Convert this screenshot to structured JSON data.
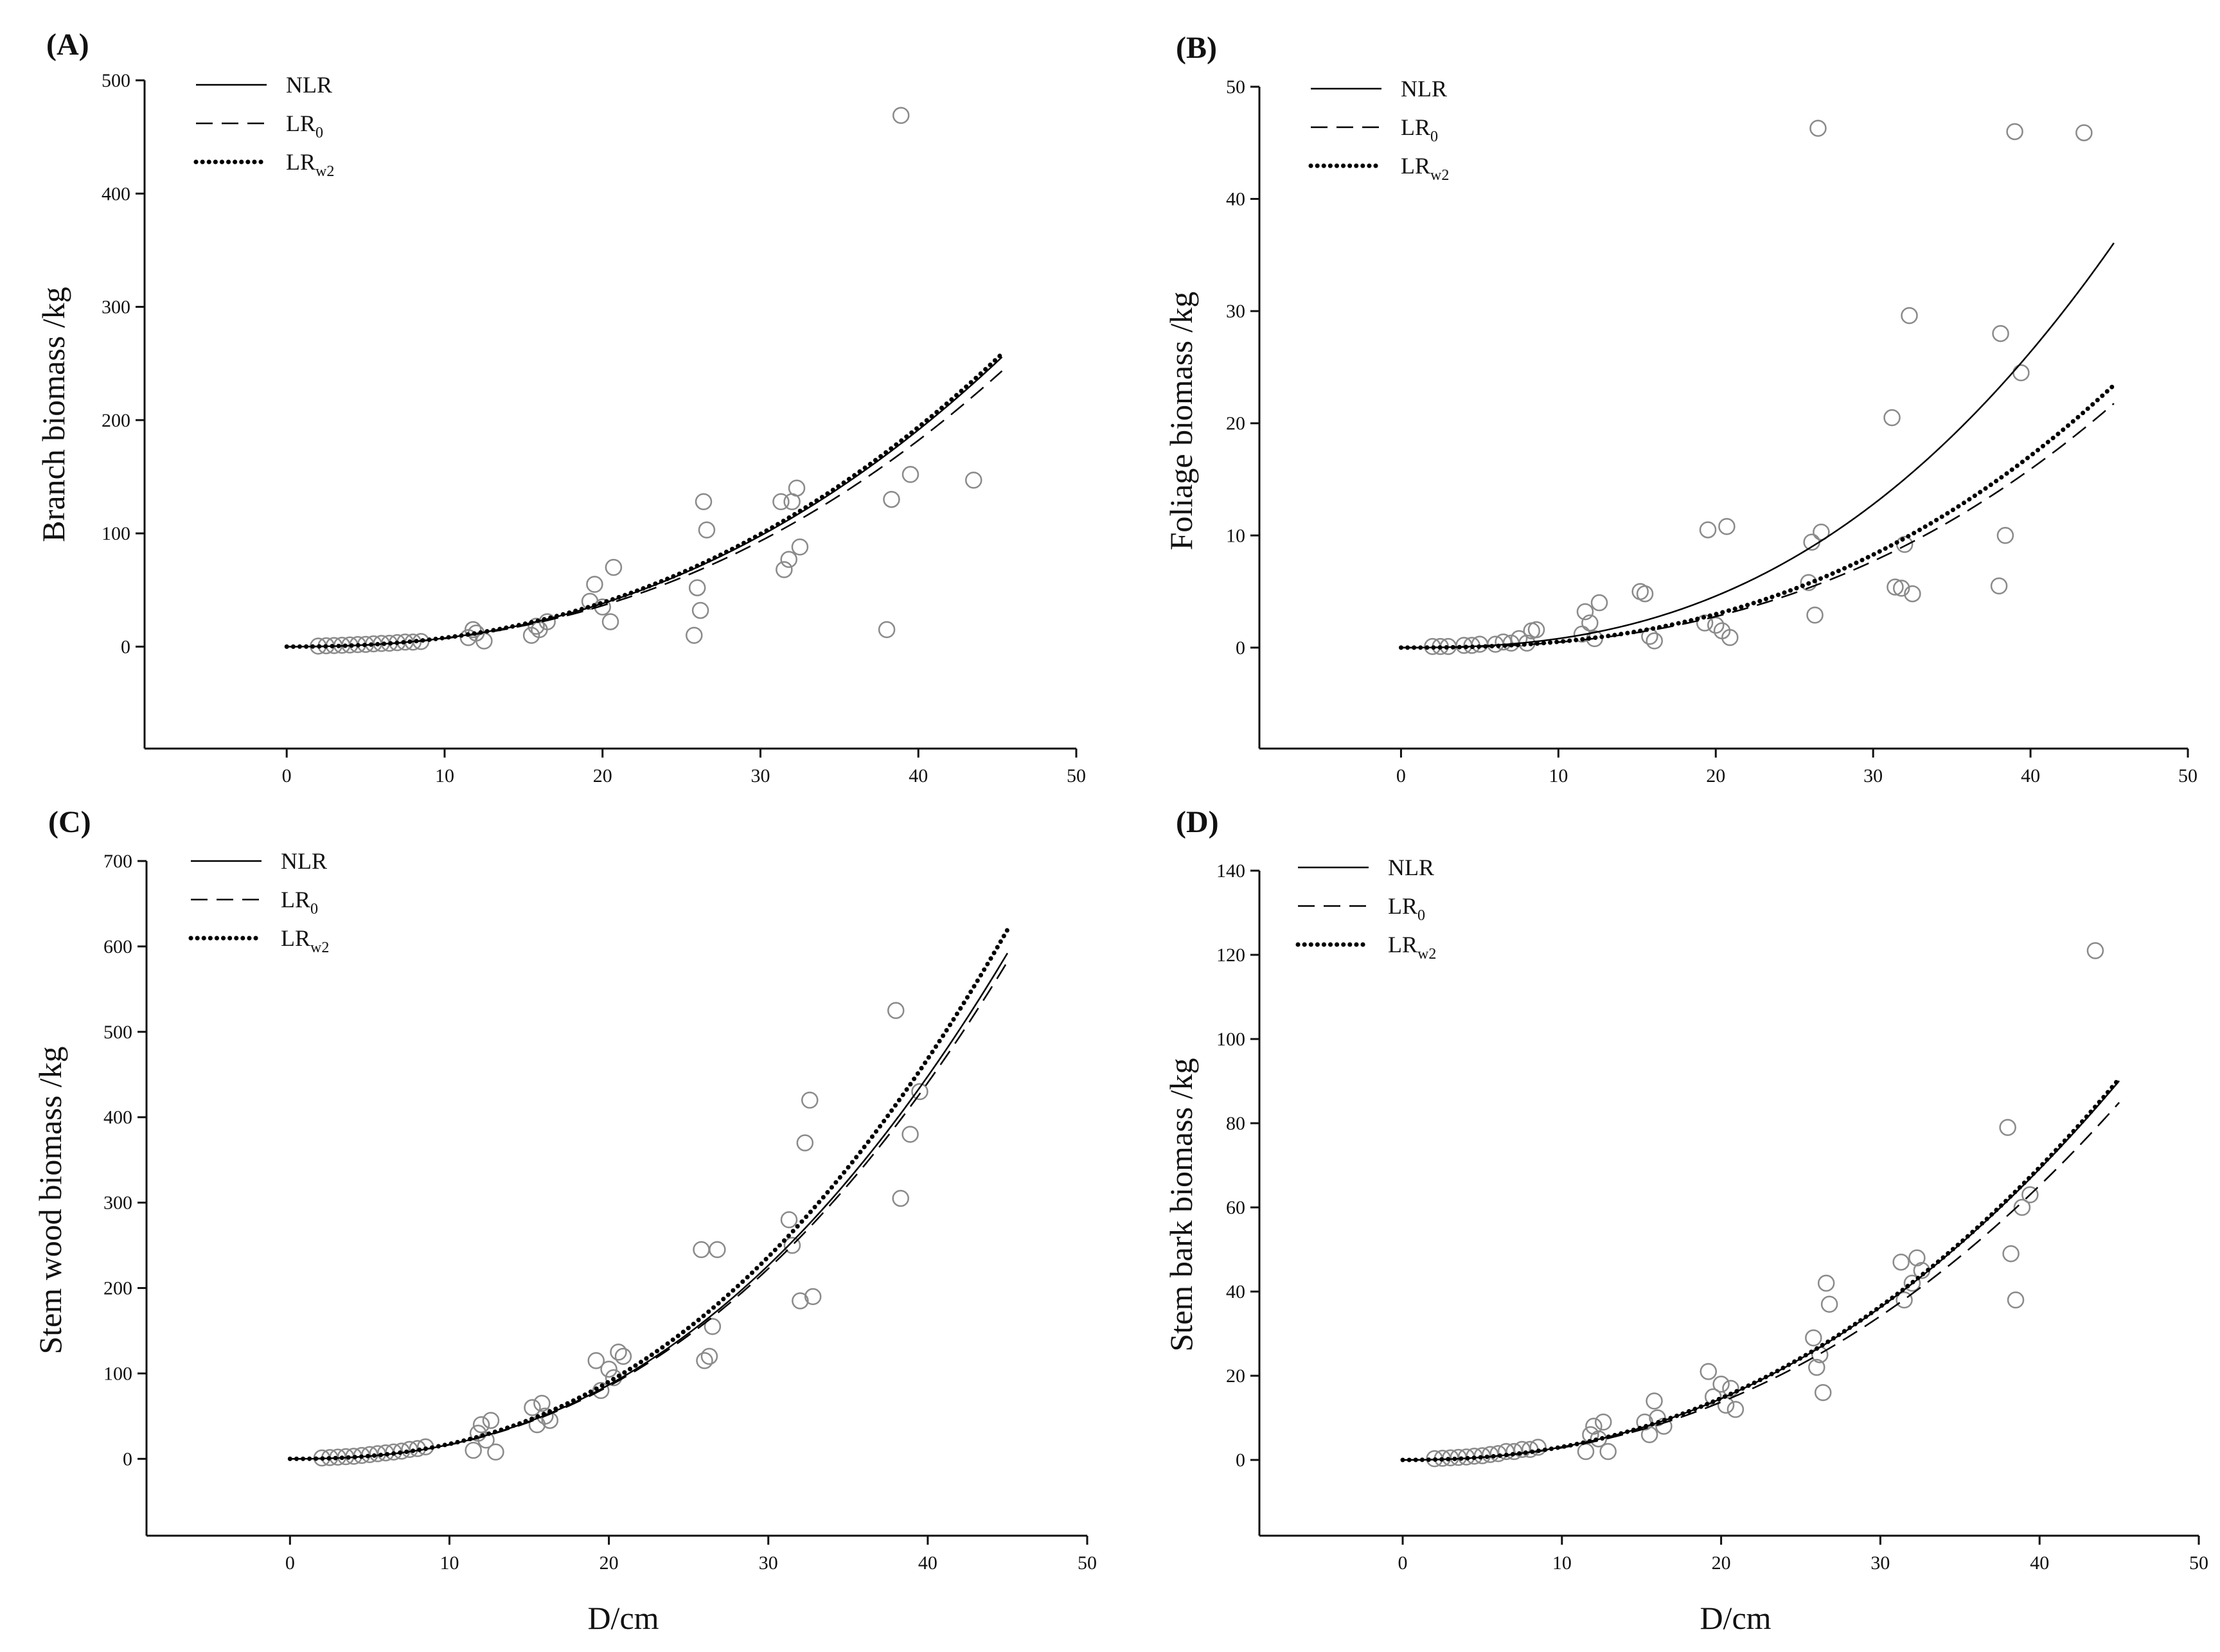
{
  "chart_data": [
    {
      "type": "scatter",
      "panel_label": "(A)",
      "ylabel": "Branch biomass /kg",
      "xlabel": "",
      "xlim": [
        -9,
        50
      ],
      "ylim": [
        -90,
        500
      ],
      "xticks": [
        0,
        10,
        20,
        30,
        40,
        50
      ],
      "yticks": [
        0,
        100,
        200,
        300,
        400,
        500
      ],
      "legend": [
        {
          "style": "solid",
          "label": "NLR",
          "sub": ""
        },
        {
          "style": "dashed",
          "label": "LR",
          "sub": "0"
        },
        {
          "style": "dotted",
          "label": "LR",
          "sub": "w2"
        }
      ],
      "series": [
        {
          "name": "NLR",
          "style": "solid",
          "a": 0.0354,
          "b": 2.33
        },
        {
          "name": "LR0",
          "style": "dashed",
          "a": 0.0337,
          "b": 2.33
        },
        {
          "name": "LRw2",
          "style": "dotted",
          "a": 0.0372,
          "b": 2.32
        }
      ],
      "points": [
        [
          2,
          0.5
        ],
        [
          2.5,
          0.8
        ],
        [
          3,
          1
        ],
        [
          3.5,
          1.2
        ],
        [
          4,
          1.5
        ],
        [
          4.5,
          1.8
        ],
        [
          5,
          2
        ],
        [
          5.5,
          2.5
        ],
        [
          6,
          2.8
        ],
        [
          6.5,
          3
        ],
        [
          7,
          3.5
        ],
        [
          7.5,
          4
        ],
        [
          8,
          4
        ],
        [
          8.5,
          4.5
        ],
        [
          11.5,
          8
        ],
        [
          11.8,
          15
        ],
        [
          12,
          12
        ],
        [
          12.5,
          5
        ],
        [
          15.5,
          10
        ],
        [
          15.8,
          18
        ],
        [
          16,
          15
        ],
        [
          16.5,
          22
        ],
        [
          19.2,
          40
        ],
        [
          19.5,
          55
        ],
        [
          20,
          35
        ],
        [
          20.5,
          22
        ],
        [
          20.7,
          70
        ],
        [
          25.8,
          10
        ],
        [
          26,
          52
        ],
        [
          26.2,
          32
        ],
        [
          26.4,
          128
        ],
        [
          26.6,
          103
        ],
        [
          31.3,
          128
        ],
        [
          31.5,
          68
        ],
        [
          31.8,
          77
        ],
        [
          32,
          128
        ],
        [
          32.3,
          140
        ],
        [
          32.5,
          88
        ],
        [
          38,
          15
        ],
        [
          38.3,
          130
        ],
        [
          38.9,
          469
        ],
        [
          39.5,
          152
        ],
        [
          43.5,
          147
        ]
      ],
      "curve_xmax": 45.3
    },
    {
      "type": "scatter",
      "panel_label": "(B)",
      "ylabel": "Foliage biomass /kg",
      "xlabel": "",
      "xlim": [
        -9,
        50
      ],
      "ylim": [
        -9,
        50
      ],
      "xticks": [
        0,
        10,
        20,
        30,
        40,
        50
      ],
      "yticks": [
        0,
        10,
        20,
        30,
        40,
        50
      ],
      "legend": [
        {
          "style": "solid",
          "label": "NLR",
          "sub": ""
        },
        {
          "style": "dashed",
          "label": "LR",
          "sub": "0"
        },
        {
          "style": "dotted",
          "label": "LR",
          "sub": "w2"
        }
      ],
      "series": [
        {
          "name": "NLR",
          "style": "solid",
          "a": 0.00242,
          "b": 2.52
        },
        {
          "name": "LR0",
          "style": "dashed",
          "a": 0.00146,
          "b": 2.52
        },
        {
          "name": "LRw2",
          "style": "dotted",
          "a": 0.00157,
          "b": 2.52
        }
      ],
      "points": [
        [
          2,
          0.1
        ],
        [
          2.5,
          0.1
        ],
        [
          3,
          0.1
        ],
        [
          4,
          0.2
        ],
        [
          4.5,
          0.2
        ],
        [
          5,
          0.3
        ],
        [
          6,
          0.3
        ],
        [
          6.5,
          0.5
        ],
        [
          7,
          0.4
        ],
        [
          7.5,
          0.8
        ],
        [
          8,
          0.4
        ],
        [
          8.3,
          1.5
        ],
        [
          8.6,
          1.6
        ],
        [
          11.5,
          1.2
        ],
        [
          11.7,
          3.2
        ],
        [
          12,
          2.2
        ],
        [
          12.3,
          0.8
        ],
        [
          12.6,
          4
        ],
        [
          15.2,
          5
        ],
        [
          15.5,
          4.8
        ],
        [
          15.8,
          1
        ],
        [
          16.1,
          0.6
        ],
        [
          19.3,
          2.2
        ],
        [
          19.5,
          10.5
        ],
        [
          20,
          2
        ],
        [
          20.4,
          1.5
        ],
        [
          20.7,
          10.8
        ],
        [
          20.9,
          0.9
        ],
        [
          25.9,
          5.8
        ],
        [
          26.1,
          9.4
        ],
        [
          26.3,
          2.9
        ],
        [
          26.5,
          46.3
        ],
        [
          26.7,
          10.3
        ],
        [
          31.2,
          20.5
        ],
        [
          31.4,
          5.4
        ],
        [
          31.8,
          5.3
        ],
        [
          32,
          9.2
        ],
        [
          32.3,
          29.6
        ],
        [
          32.5,
          4.8
        ],
        [
          38,
          5.5
        ],
        [
          38.1,
          28
        ],
        [
          38.4,
          10
        ],
        [
          39,
          46
        ],
        [
          39.4,
          24.5
        ],
        [
          43.4,
          45.9
        ]
      ],
      "curve_xmax": 45.3
    },
    {
      "type": "scatter",
      "panel_label": "(C)",
      "ylabel": "Stem wood biomass /kg",
      "xlabel": "D/cm",
      "xlim": [
        -9,
        50
      ],
      "ylim": [
        -90,
        700
      ],
      "xticks": [
        0,
        10,
        20,
        30,
        40,
        50
      ],
      "yticks": [
        0,
        100,
        200,
        300,
        400,
        500,
        600,
        700
      ],
      "legend": [
        {
          "style": "solid",
          "label": "NLR",
          "sub": ""
        },
        {
          "style": "dashed",
          "label": "LR",
          "sub": "0"
        },
        {
          "style": "dotted",
          "label": "LR",
          "sub": "w2"
        }
      ],
      "series": [
        {
          "name": "NLR",
          "style": "solid",
          "a": 0.0715,
          "b": 2.37
        },
        {
          "name": "LR0",
          "style": "dashed",
          "a": 0.0703,
          "b": 2.37
        },
        {
          "name": "LRw2",
          "style": "dotted",
          "a": 0.0734,
          "b": 2.375
        }
      ],
      "points": [
        [
          2,
          1
        ],
        [
          2.5,
          1.5
        ],
        [
          3,
          2
        ],
        [
          3.5,
          2.5
        ],
        [
          4,
          3
        ],
        [
          4.5,
          4
        ],
        [
          5,
          5
        ],
        [
          5.5,
          6
        ],
        [
          6,
          7
        ],
        [
          6.5,
          8
        ],
        [
          7,
          9
        ],
        [
          7.5,
          11
        ],
        [
          8,
          12
        ],
        [
          8.5,
          14
        ],
        [
          11.5,
          10
        ],
        [
          11.8,
          30
        ],
        [
          12,
          40
        ],
        [
          12.3,
          22
        ],
        [
          12.6,
          45
        ],
        [
          12.9,
          8
        ],
        [
          15.2,
          60
        ],
        [
          15.5,
          40
        ],
        [
          15.8,
          65
        ],
        [
          16,
          50
        ],
        [
          16.3,
          45
        ],
        [
          19.2,
          115
        ],
        [
          19.5,
          80
        ],
        [
          20,
          105
        ],
        [
          20.3,
          95
        ],
        [
          20.6,
          125
        ],
        [
          20.9,
          120
        ],
        [
          25.8,
          245
        ],
        [
          26,
          115
        ],
        [
          26.3,
          120
        ],
        [
          26.5,
          155
        ],
        [
          26.8,
          245
        ],
        [
          31.3,
          280
        ],
        [
          31.5,
          250
        ],
        [
          32,
          185
        ],
        [
          32.3,
          370
        ],
        [
          32.6,
          420
        ],
        [
          32.8,
          190
        ],
        [
          38,
          525
        ],
        [
          38.3,
          305
        ],
        [
          38.9,
          380
        ],
        [
          39.5,
          430
        ]
      ],
      "curve_xmax": 45.0
    },
    {
      "type": "scatter",
      "panel_label": "(D)",
      "ylabel": "Stem bark biomass /kg",
      "xlabel": "D/cm",
      "xlim": [
        -9,
        50
      ],
      "ylim": [
        -18,
        140
      ],
      "xticks": [
        0,
        10,
        20,
        30,
        40,
        50
      ],
      "yticks": [
        0,
        20,
        40,
        60,
        80,
        100,
        120,
        140
      ],
      "legend": [
        {
          "style": "solid",
          "label": "NLR",
          "sub": ""
        },
        {
          "style": "dashed",
          "label": "LR",
          "sub": "0"
        },
        {
          "style": "dotted",
          "label": "LR",
          "sub": "w2"
        }
      ],
      "series": [
        {
          "name": "NLR",
          "style": "solid",
          "a": 0.0175,
          "b": 2.245
        },
        {
          "name": "LR0",
          "style": "dashed",
          "a": 0.0165,
          "b": 2.245
        },
        {
          "name": "LRw2",
          "style": "dotted",
          "a": 0.0176,
          "b": 2.245
        }
      ],
      "points": [
        [
          2,
          0.3
        ],
        [
          2.5,
          0.4
        ],
        [
          3,
          0.5
        ],
        [
          3.5,
          0.6
        ],
        [
          4,
          0.7
        ],
        [
          4.5,
          0.9
        ],
        [
          5,
          1
        ],
        [
          5.5,
          1.3
        ],
        [
          6,
          1.5
        ],
        [
          6.5,
          2
        ],
        [
          7,
          2
        ],
        [
          7.5,
          2.5
        ],
        [
          8,
          2.5
        ],
        [
          8.5,
          3
        ],
        [
          11.5,
          2
        ],
        [
          11.8,
          6
        ],
        [
          12,
          8
        ],
        [
          12.3,
          5
        ],
        [
          12.6,
          9
        ],
        [
          12.9,
          2
        ],
        [
          15.2,
          9
        ],
        [
          15.5,
          6
        ],
        [
          15.8,
          14
        ],
        [
          16,
          10
        ],
        [
          16.4,
          8
        ],
        [
          19.2,
          21
        ],
        [
          19.5,
          15
        ],
        [
          20,
          18
        ],
        [
          20.3,
          13
        ],
        [
          20.6,
          17
        ],
        [
          20.9,
          12
        ],
        [
          25.8,
          29
        ],
        [
          26,
          22
        ],
        [
          26.2,
          25
        ],
        [
          26.4,
          16
        ],
        [
          26.6,
          42
        ],
        [
          26.8,
          37
        ],
        [
          31.3,
          47
        ],
        [
          31.5,
          38
        ],
        [
          32,
          42
        ],
        [
          32.3,
          48
        ],
        [
          32.6,
          45
        ],
        [
          38,
          79
        ],
        [
          38.2,
          49
        ],
        [
          38.5,
          38
        ],
        [
          38.9,
          60
        ],
        [
          39.4,
          63
        ],
        [
          43.5,
          121
        ]
      ],
      "curve_xmax": 45.0
    }
  ]
}
